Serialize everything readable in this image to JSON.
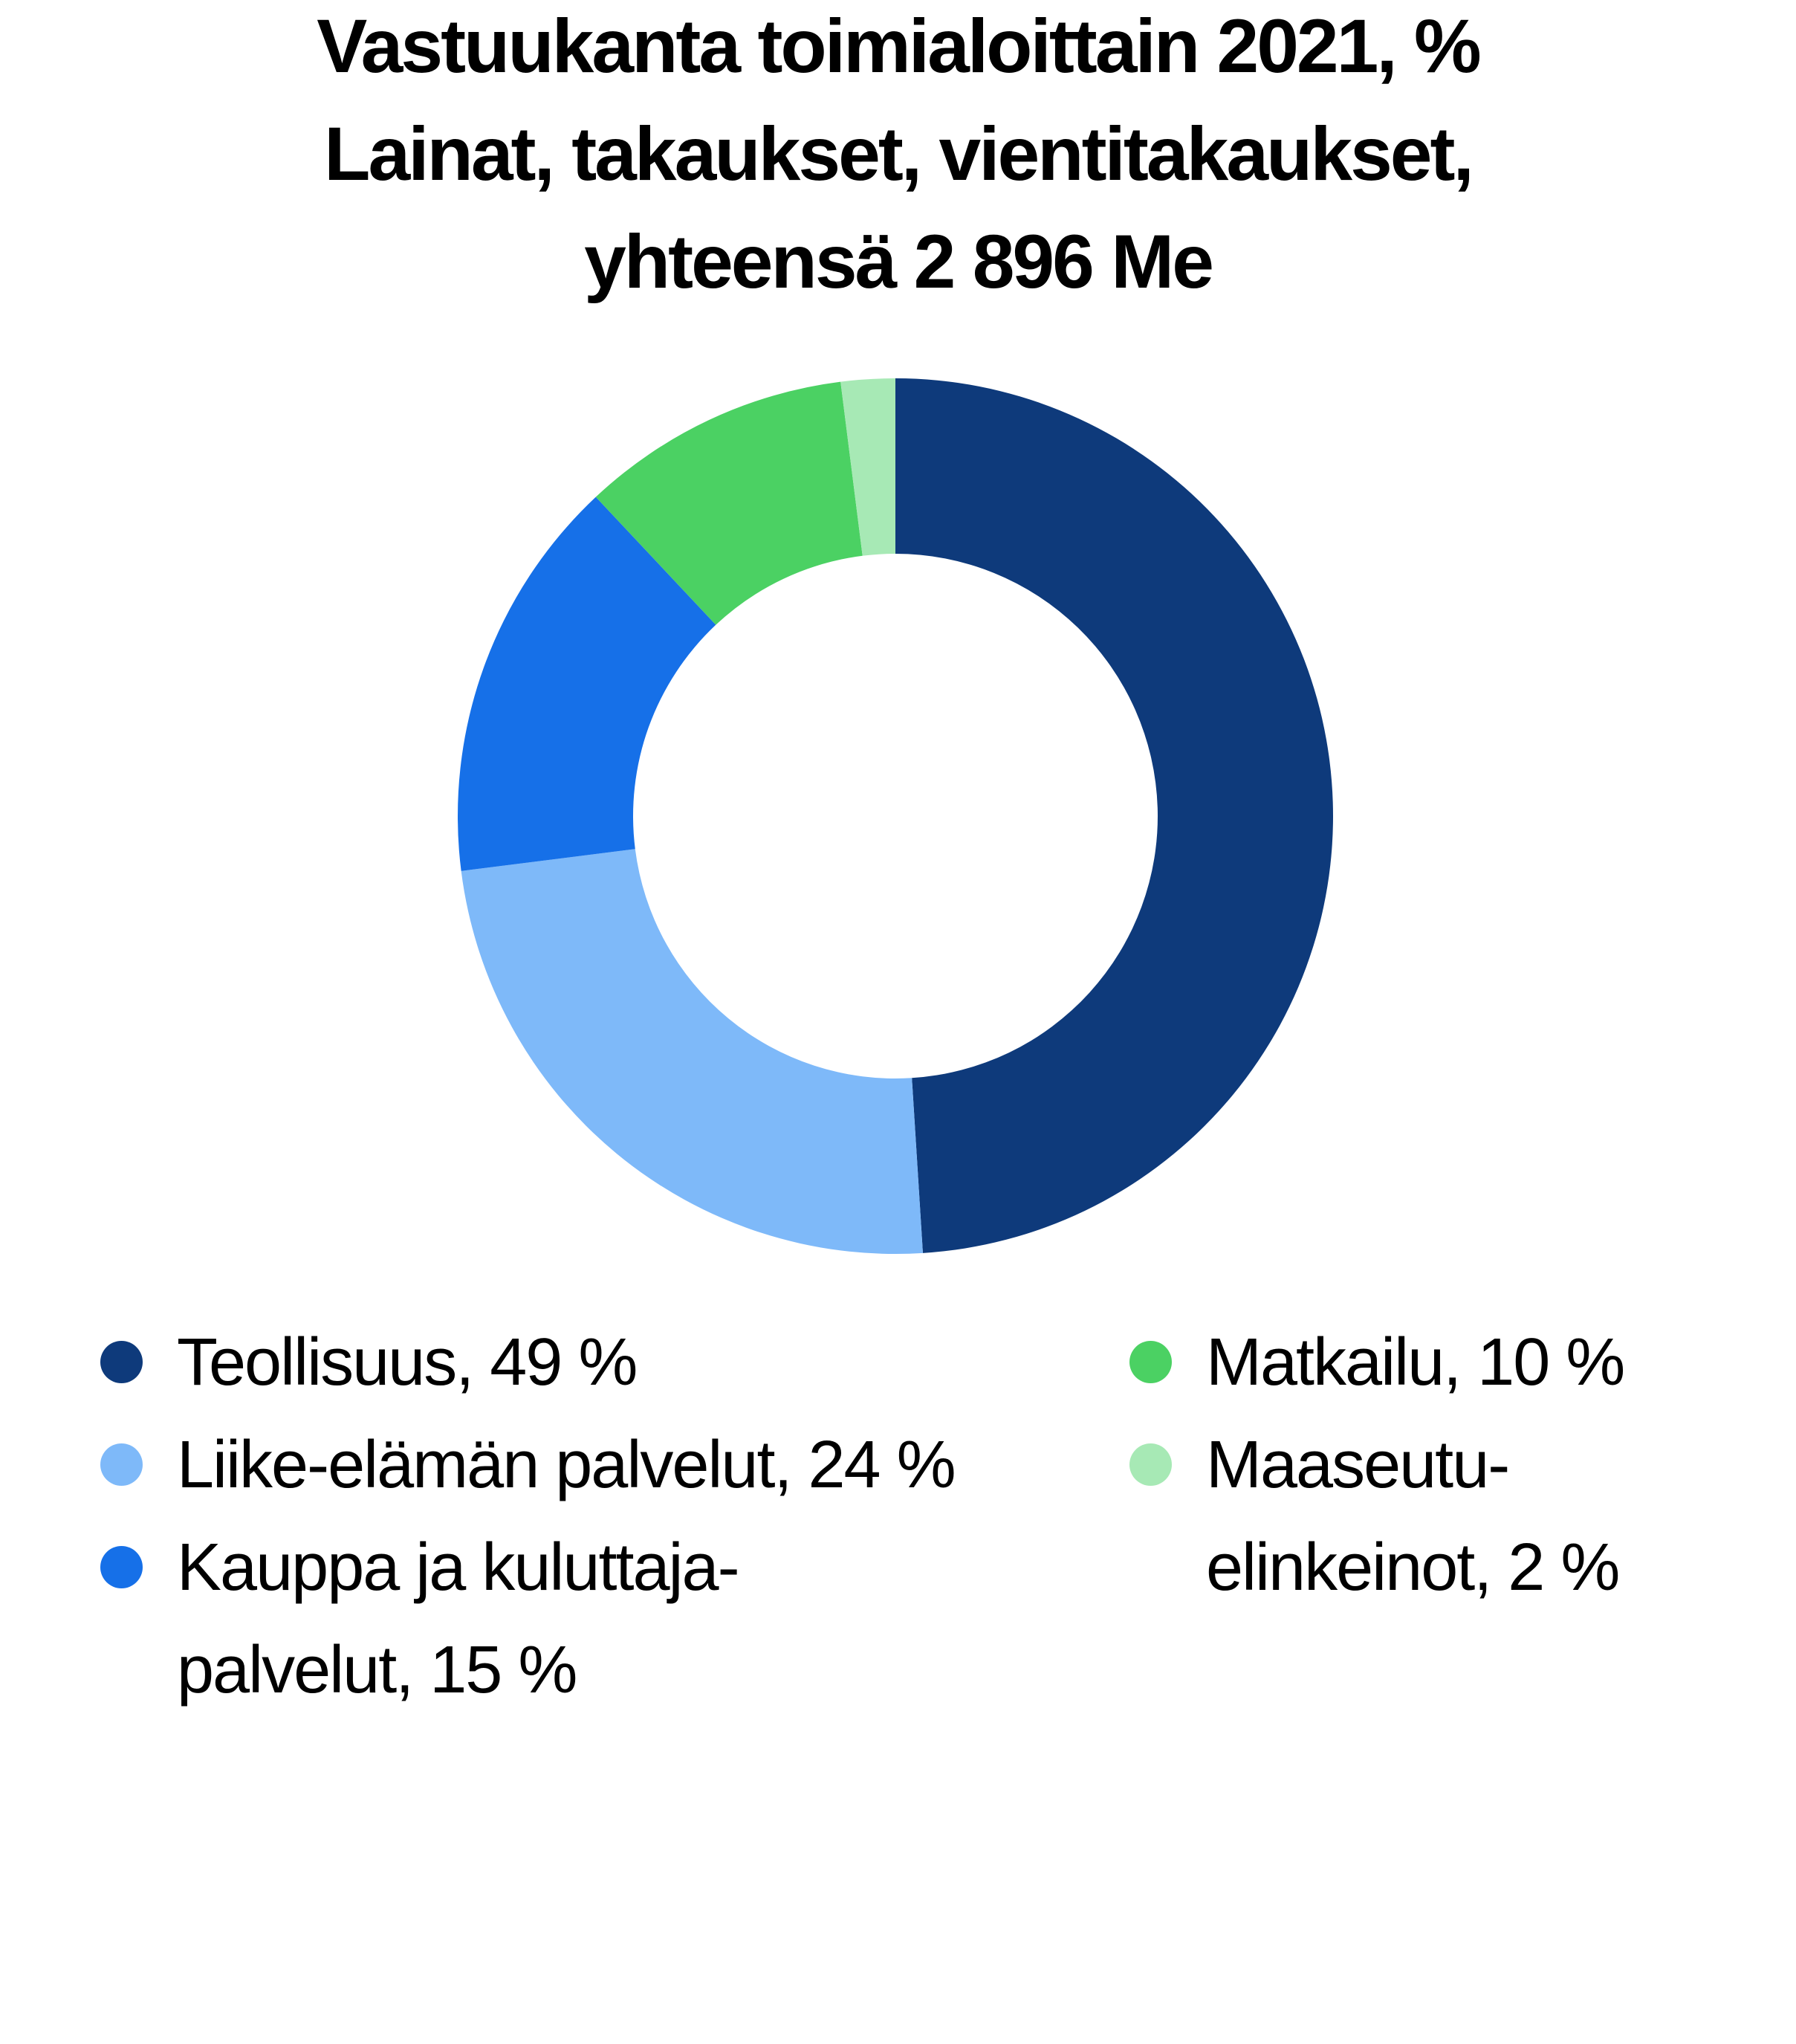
{
  "title": {
    "lines": [
      "Vastuukanta toimialoittain 2021, %",
      "Lainat, takaukset, vientitakaukset,",
      "yhteensä 2 896 Me"
    ]
  },
  "chart_data": {
    "type": "pie",
    "subtype": "donut",
    "title": "Vastuukanta toimialoittain 2021, %",
    "subtitle": "Lainat, takaukset, vientitakaukset, yhteensä 2 896 Me",
    "total_value_label": "2 896 Me",
    "unit": "%",
    "start_angle_deg": 0,
    "direction": "clockwise",
    "inner_radius_ratio": 0.6,
    "legend_position": "bottom",
    "background_color": "#ffffff",
    "text_color": "#000000",
    "segments": [
      {
        "label": "Teollisuus",
        "value": 49,
        "color": "#0E3A7B",
        "legend_lines": [
          "Teollisuus, 49 %"
        ]
      },
      {
        "label": "Liike-elämän palvelut",
        "value": 24,
        "color": "#7EB9F9",
        "legend_lines": [
          "Liike-elämän palvelut, 24 %"
        ]
      },
      {
        "label": "Kauppa ja kuluttajapalvelut",
        "value": 15,
        "color": "#1670E8",
        "legend_lines": [
          "Kauppa ja kuluttaja-",
          "palvelut, 15 %"
        ]
      },
      {
        "label": "Matkailu",
        "value": 10,
        "color": "#4BD163",
        "legend_lines": [
          "Matkailu, 10 %"
        ]
      },
      {
        "label": "Maaseutuelinkeinot",
        "value": 2,
        "color": "#A7E9B5",
        "legend_lines": [
          "Maaseutu-",
          "elinkeinot, 2 %"
        ]
      }
    ]
  },
  "legend": {
    "columns": [
      [
        0,
        1,
        2
      ],
      [
        3,
        4
      ]
    ]
  }
}
